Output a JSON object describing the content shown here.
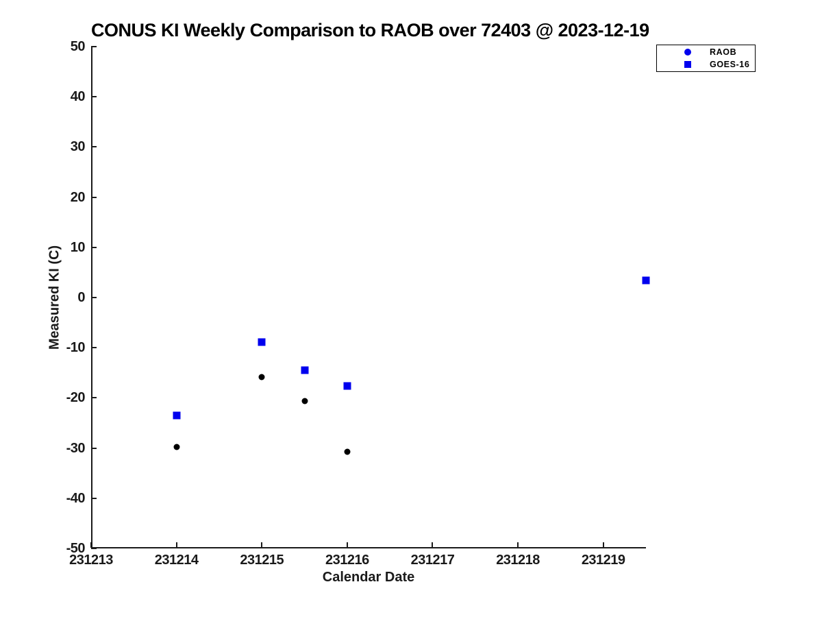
{
  "page": {
    "background": "#ffffff"
  },
  "chart_data": {
    "type": "scatter",
    "title": "CONUS KI Weekly Comparison to RAOB over 72403 @ 2023-12-19",
    "xlabel": "Calendar Date",
    "ylabel": "Measured KI (C)",
    "xlim": [
      231213,
      231219.5
    ],
    "ylim": [
      -50,
      50
    ],
    "x_ticks": [
      231213,
      231214,
      231215,
      231216,
      231217,
      231218,
      231219
    ],
    "y_ticks": [
      50,
      40,
      30,
      20,
      10,
      0,
      -10,
      -20,
      -30,
      -40,
      -50
    ],
    "grid": false,
    "legend_position": "outside-top-right",
    "legend": [
      {
        "label": "RAOB",
        "marker": "circle",
        "color": "#0000ee"
      },
      {
        "label": "GOES-16",
        "marker": "square",
        "color": "#0000ee"
      }
    ],
    "series": [
      {
        "name": "RAOB",
        "marker": "circle",
        "marker_size": 9,
        "points": [
          {
            "x": 231214.0,
            "y": -29.8,
            "color": "#000000"
          },
          {
            "x": 231215.0,
            "y": -15.9,
            "color": "#000000"
          },
          {
            "x": 231215.5,
            "y": -20.6,
            "color": "#000000"
          },
          {
            "x": 231216.0,
            "y": -30.8,
            "color": "#000000"
          },
          {
            "x": 231219.5,
            "y": 3.4,
            "color": "#0000ee"
          }
        ]
      },
      {
        "name": "GOES-16",
        "marker": "square",
        "marker_size": 11,
        "points": [
          {
            "x": 231214.0,
            "y": -23.5,
            "color": "#0000ee"
          },
          {
            "x": 231215.0,
            "y": -8.9,
            "color": "#0000ee"
          },
          {
            "x": 231215.5,
            "y": -14.5,
            "color": "#0000ee"
          },
          {
            "x": 231216.0,
            "y": -17.6,
            "color": "#0000ee"
          },
          {
            "x": 231219.5,
            "y": 3.4,
            "color": "#0000ee"
          }
        ]
      }
    ]
  }
}
